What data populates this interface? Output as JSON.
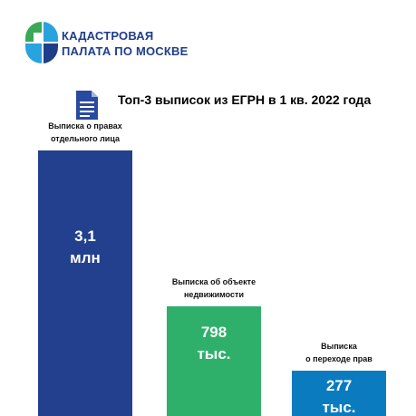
{
  "header": {
    "org_line1": "КАДАСТРОВАЯ",
    "org_line2": "ПАЛАТА ПО МОСКВЕ"
  },
  "colors": {
    "brand_blue": "#1f3d8a",
    "logo_green": "#3aa856",
    "logo_light_blue": "#29a3dd",
    "bar1": "#23408e",
    "bar2": "#2fb06a",
    "bar3": "#0b7bc0"
  },
  "icons": {
    "document": "document-icon",
    "logo": "cadastre-logo-icon"
  },
  "chart_data": {
    "type": "bar",
    "title": "Топ-3 выписок из ЕГРН в 1 кв. 2022 года",
    "xlabel": "",
    "ylabel": "",
    "unit_note": "",
    "grid": false,
    "legend": "none",
    "categories": [
      [
        "Выписка о правах",
        "отдельного лица"
      ],
      [
        "Выписка об объекте",
        "недвижимости"
      ],
      [
        "Выписка",
        "о переходе прав"
      ]
    ],
    "values": [
      3100000,
      798000,
      277000
    ],
    "value_labels": [
      [
        "3,1",
        "млн"
      ],
      [
        "798",
        "тыс."
      ],
      [
        "277",
        "тыс."
      ]
    ],
    "bar_colors": [
      "#23408e",
      "#2fb06a",
      "#0b7bc0"
    ],
    "ylim": [
      0,
      3100000
    ]
  }
}
